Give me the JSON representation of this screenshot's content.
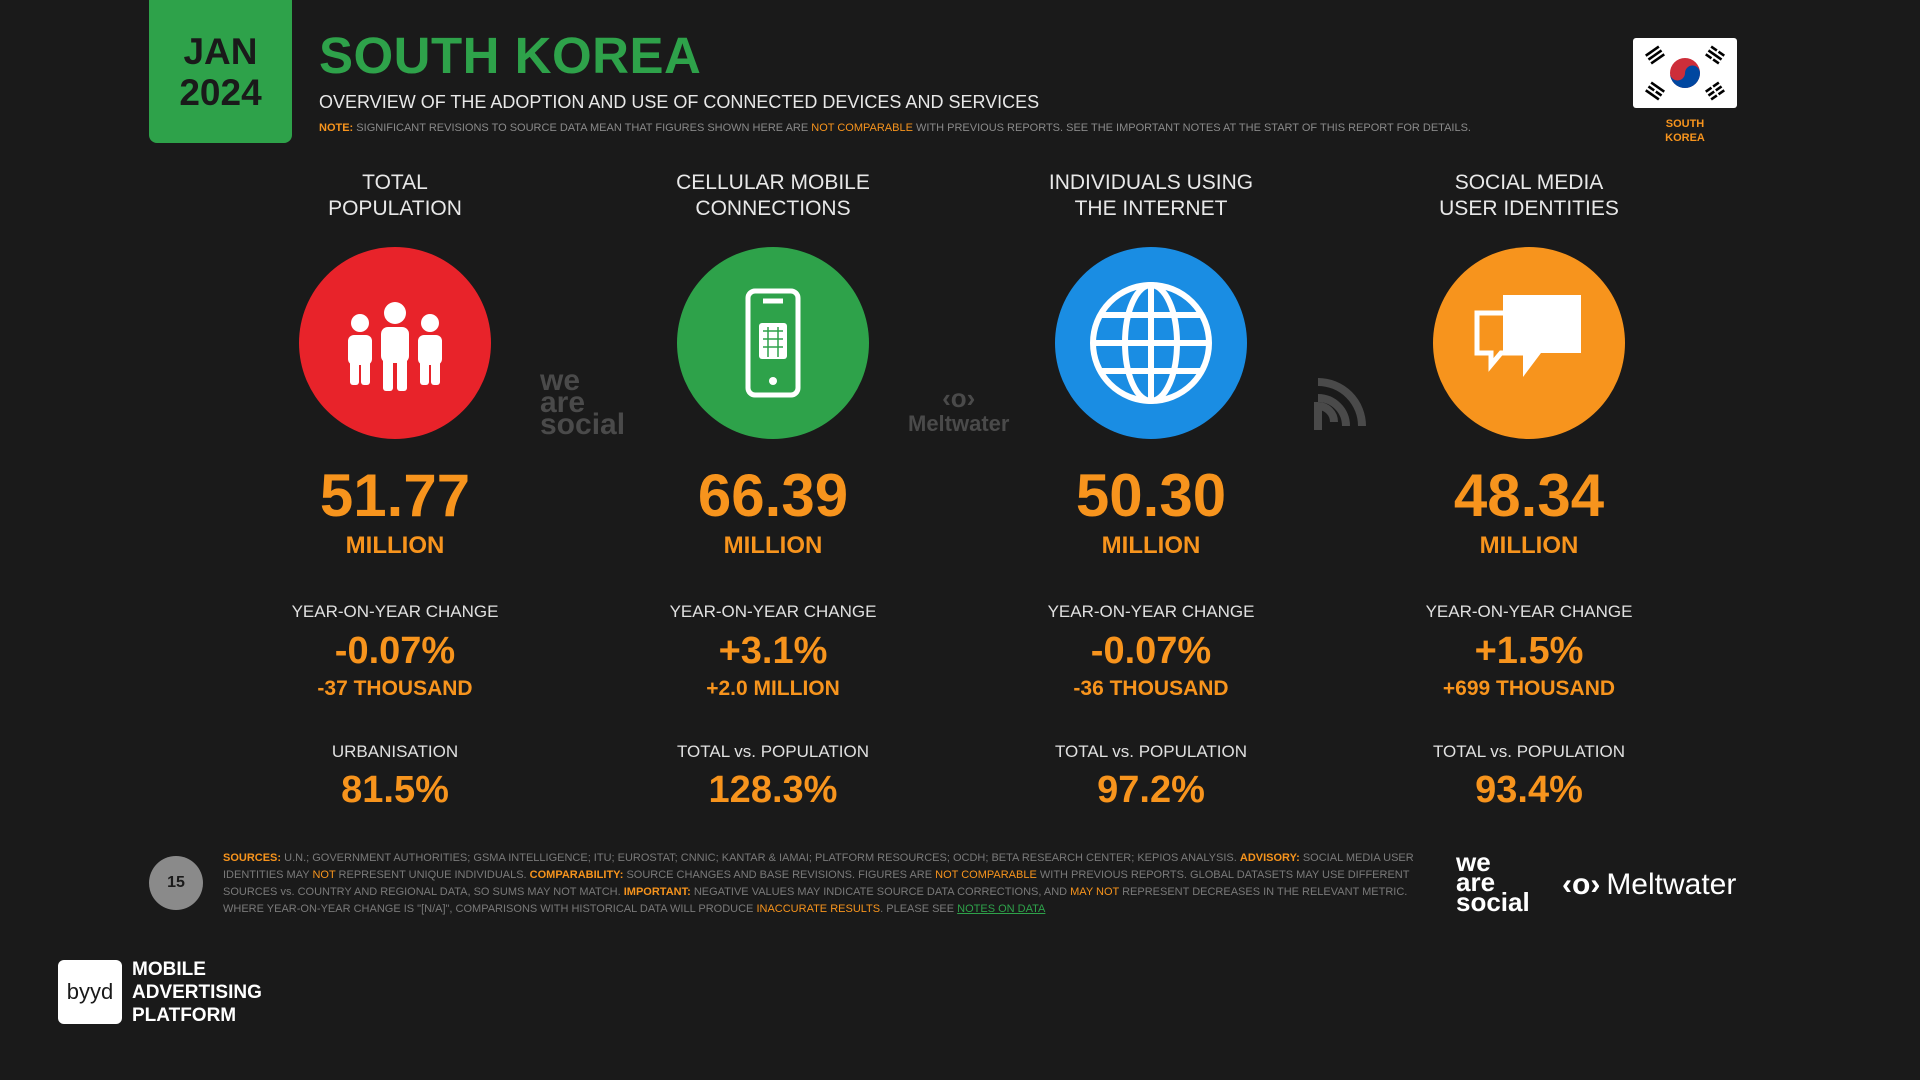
{
  "header": {
    "date_month": "JAN",
    "date_year": "2024",
    "title": "SOUTH KOREA",
    "subtitle": "OVERVIEW OF THE ADOPTION AND USE OF CONNECTED DEVICES AND SERVICES",
    "note_label": "NOTE:",
    "note_text_1": "SIGNIFICANT REVISIONS TO SOURCE DATA MEAN THAT FIGURES SHOWN HERE ARE",
    "note_highlight": "NOT COMPARABLE",
    "note_text_2": "WITH PREVIOUS REPORTS. SEE THE IMPORTANT NOTES AT THE START OF THIS REPORT FOR DETAILS.",
    "flag_label_1": "SOUTH",
    "flag_label_2": "KOREA"
  },
  "columns": [
    {
      "title_1": "TOTAL",
      "title_2": "POPULATION",
      "icon": "people-icon",
      "color": "#e8232a",
      "value": "51.77",
      "unit": "MILLION",
      "yoy_label": "YEAR-ON-YEAR CHANGE",
      "yoy_pct": "-0.07%",
      "yoy_abs": "-37 THOUSAND",
      "stat_label": "URBANISATION",
      "stat_value": "81.5%"
    },
    {
      "title_1": "CELLULAR MOBILE",
      "title_2": "CONNECTIONS",
      "icon": "mobile-phone-icon",
      "color": "#2ea24a",
      "value": "66.39",
      "unit": "MILLION",
      "yoy_label": "YEAR-ON-YEAR CHANGE",
      "yoy_pct": "+3.1%",
      "yoy_abs": "+2.0 MILLION",
      "stat_label": "TOTAL vs. POPULATION",
      "stat_value": "128.3%"
    },
    {
      "title_1": "INDIVIDUALS USING",
      "title_2": "THE INTERNET",
      "icon": "globe-icon",
      "color": "#1a8de3",
      "value": "50.30",
      "unit": "MILLION",
      "yoy_label": "YEAR-ON-YEAR CHANGE",
      "yoy_pct": "-0.07%",
      "yoy_abs": "-36 THOUSAND",
      "stat_label": "TOTAL vs. POPULATION",
      "stat_value": "97.2%"
    },
    {
      "title_1": "SOCIAL MEDIA",
      "title_2": "USER IDENTITIES",
      "icon": "chat-bubbles-icon",
      "color": "#f7941d",
      "value": "48.34",
      "unit": "MILLION",
      "yoy_label": "YEAR-ON-YEAR CHANGE",
      "yoy_pct": "+1.5%",
      "yoy_abs": "+699 THOUSAND",
      "stat_label": "TOTAL vs. POPULATION",
      "stat_value": "93.4%"
    }
  ],
  "watermarks": {
    "was_1": "we",
    "was_2": "are",
    "was_3": "social",
    "meltwater": "Meltwater"
  },
  "footer": {
    "page_number": "15",
    "sources_label": "SOURCES:",
    "sources_text": "U.N.; GOVERNMENT AUTHORITIES; GSMA INTELLIGENCE; ITU; EUROSTAT; CNNIC; KANTAR & IAMAI; PLATFORM RESOURCES; OCDH; BETA RESEARCH CENTER; KEPIOS ANALYSIS.",
    "advisory_label": "ADVISORY:",
    "advisory_text_1": "SOCIAL MEDIA USER IDENTITIES MAY",
    "advisory_not": "NOT",
    "advisory_text_2": "REPRESENT UNIQUE INDIVIDUALS.",
    "comparability_label": "COMPARABILITY:",
    "comparability_text_1": "SOURCE CHANGES AND BASE REVISIONS. FIGURES ARE",
    "comparability_hl": "NOT COMPARABLE",
    "comparability_text_2": "WITH PREVIOUS REPORTS. GLOBAL DATASETS MAY USE DIFFERENT SOURCES vs. COUNTRY AND REGIONAL DATA, SO SUMS MAY NOT MATCH.",
    "important_label": "IMPORTANT:",
    "important_text_1": "NEGATIVE VALUES MAY INDICATE SOURCE DATA CORRECTIONS, AND",
    "important_hl": "MAY NOT",
    "important_text_2": "REPRESENT DECREASES IN THE RELEVANT METRIC. WHERE YEAR-ON-YEAR CHANGE IS \"[N/A]\", COMPARISONS WITH HISTORICAL DATA WILL PRODUCE",
    "inaccurate": "INACCURATE RESULTS",
    "please_see": ". PLEASE SEE",
    "notes_link": "NOTES ON DATA",
    "logo_was_1": "we",
    "logo_was_2": "are",
    "logo_was_3": "social",
    "logo_meltwater": "Meltwater"
  },
  "byyd": {
    "logo": "byyd",
    "line_1": "MOBILE",
    "line_2": "ADVERTISING",
    "line_3": "PLATFORM"
  }
}
